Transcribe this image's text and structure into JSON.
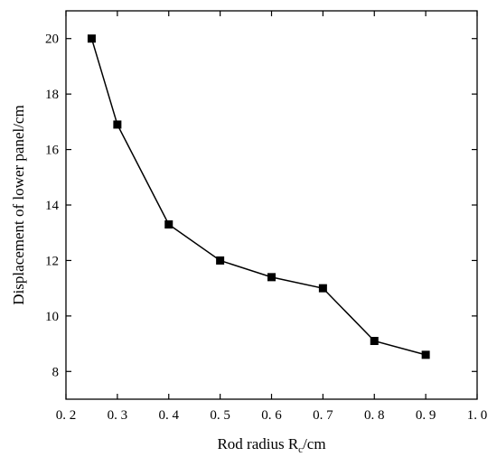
{
  "chart_data": {
    "type": "line",
    "xlabel": "Rod radius R",
    "xlabel_sub": "c",
    "xlabel_unit": "/cm",
    "ylabel": "Displacement of lower panel/cm",
    "xlim": [
      0.2,
      1.0
    ],
    "ylim": [
      7,
      21
    ],
    "xticks": [
      0.2,
      0.3,
      0.4,
      0.5,
      0.6,
      0.7,
      0.8,
      0.9,
      1.0
    ],
    "xtick_labels": [
      "0. 2",
      "0. 3",
      "0. 4",
      "0. 5",
      "0. 6",
      "0. 7",
      "0. 8",
      "0. 9",
      "1. 0"
    ],
    "yticks": [
      8,
      10,
      12,
      14,
      16,
      18,
      20
    ],
    "ytick_labels": [
      "8",
      "10",
      "12",
      "14",
      "16",
      "18",
      "20"
    ],
    "grid": false,
    "legend": "none",
    "marker": "square",
    "color": "#000000",
    "series": [
      {
        "x": [
          0.25,
          0.3,
          0.4,
          0.5,
          0.6,
          0.7,
          0.8,
          0.9
        ],
        "y": [
          20.0,
          16.9,
          13.3,
          12.0,
          11.4,
          11.0,
          9.1,
          8.6
        ]
      }
    ]
  }
}
